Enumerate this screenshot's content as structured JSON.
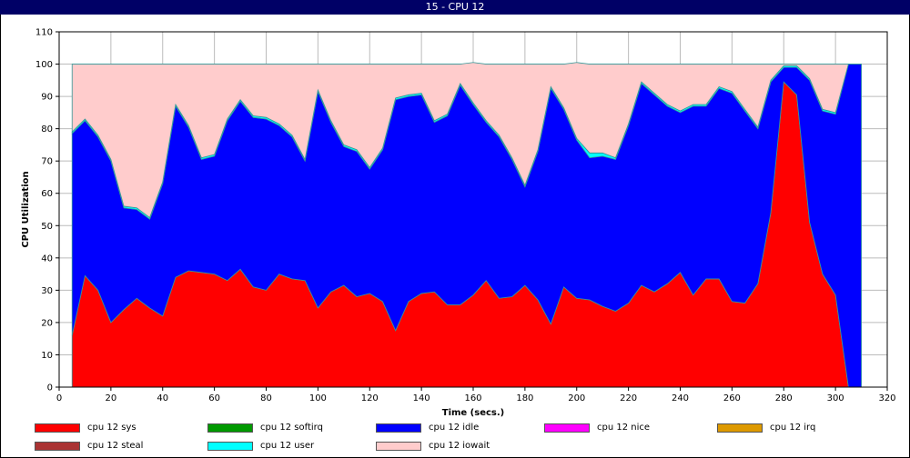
{
  "window": {
    "title": "15 - CPU 12"
  },
  "chart_data": {
    "type": "area",
    "stacked": true,
    "title": "15 - CPU 12",
    "xlabel": "Time (secs.)",
    "ylabel": "CPU Utilization",
    "xlim": [
      0,
      320
    ],
    "ylim": [
      0,
      110
    ],
    "xticks": [
      0,
      20,
      40,
      60,
      80,
      100,
      120,
      140,
      160,
      180,
      200,
      220,
      240,
      260,
      280,
      300,
      320
    ],
    "yticks": [
      0,
      10,
      20,
      30,
      40,
      50,
      60,
      70,
      80,
      90,
      100,
      110
    ],
    "grid": true,
    "legend_position": "bottom",
    "x": [
      5,
      10,
      15,
      20,
      25,
      30,
      35,
      40,
      45,
      50,
      55,
      60,
      65,
      70,
      75,
      80,
      85,
      90,
      95,
      100,
      105,
      110,
      115,
      120,
      125,
      130,
      135,
      140,
      145,
      150,
      155,
      160,
      165,
      170,
      175,
      180,
      185,
      190,
      195,
      200,
      205,
      210,
      215,
      220,
      225,
      230,
      235,
      240,
      245,
      250,
      255,
      260,
      265,
      270,
      275,
      280,
      285,
      290,
      295,
      300,
      305,
      310
    ],
    "series": [
      {
        "name": "cpu 12 sys",
        "color": "#ff0000",
        "values": [
          16,
          34.5,
          30,
          20,
          24,
          27.5,
          24.5,
          22,
          34,
          36,
          35.5,
          35,
          33,
          36.5,
          31,
          30,
          35,
          33.5,
          33,
          24.5,
          29.5,
          31.5,
          28,
          29,
          26.5,
          17.5,
          26.5,
          29,
          29.5,
          25.5,
          25.5,
          28.5,
          33,
          27.5,
          28,
          31.5,
          27,
          19.5,
          31,
          27.5,
          27,
          25,
          23.5,
          26,
          31.5,
          29.5,
          32,
          35.5,
          28.5,
          33.5,
          33.5,
          26.5,
          26,
          32,
          54,
          94.5,
          90.5,
          51,
          35,
          28.5,
          0,
          0
        ]
      },
      {
        "name": "cpu 12 softirq",
        "color": "#009900",
        "values": [
          0,
          0,
          0,
          0,
          0,
          0,
          0,
          0,
          0,
          0,
          0,
          0,
          0,
          0,
          0,
          0,
          0,
          0,
          0,
          0,
          0,
          0,
          0,
          0,
          0,
          0,
          0,
          0,
          0,
          0,
          0,
          0,
          0,
          0,
          0,
          0,
          0,
          0,
          0,
          0,
          0,
          0,
          0,
          0,
          0,
          0,
          0,
          0,
          0,
          0,
          0,
          0,
          0,
          0,
          0,
          0,
          0,
          0,
          0,
          0,
          0,
          0
        ]
      },
      {
        "name": "cpu 12 idle",
        "color": "#0000ff",
        "values": [
          62.5,
          48,
          47.5,
          50,
          31.5,
          27.5,
          27.5,
          41,
          53,
          44.5,
          35,
          36.5,
          49.5,
          52,
          52.5,
          53,
          46,
          44,
          37,
          67,
          52.5,
          43,
          45,
          38.5,
          47,
          71.5,
          63.5,
          61.5,
          52.5,
          58.5,
          68,
          59,
          49,
          50,
          42.5,
          30.5,
          46,
          73,
          55,
          49,
          44,
          46.5,
          47,
          55,
          62.5,
          61,
          55,
          49.5,
          58.5,
          53.5,
          59,
          64.5,
          59.5,
          48,
          40.5,
          4.5,
          8.5,
          44,
          50.5,
          56,
          100,
          100
        ]
      },
      {
        "name": "cpu 12 nice",
        "color": "#ff00ff",
        "values": [
          0,
          0,
          0,
          0,
          0,
          0,
          0,
          0,
          0,
          0,
          0,
          0,
          0,
          0,
          0,
          0,
          0,
          0,
          0,
          0,
          0,
          0,
          0,
          0,
          0,
          0,
          0,
          0,
          0,
          0,
          0,
          0,
          0,
          0,
          0,
          0,
          0,
          0,
          0,
          0,
          0,
          0,
          0,
          0,
          0,
          0,
          0,
          0,
          0,
          0,
          0,
          0,
          0,
          0,
          0,
          0,
          0,
          0,
          0,
          0,
          0,
          0
        ]
      },
      {
        "name": "cpu 12 irq",
        "color": "#dd9900",
        "values": [
          0,
          0,
          0,
          0,
          0,
          0,
          0,
          0,
          0,
          0,
          0,
          0,
          0,
          0,
          0,
          0,
          0,
          0,
          0,
          0,
          0,
          0,
          0,
          0,
          0,
          0,
          0,
          0,
          0,
          0,
          0,
          0,
          0,
          0,
          0,
          0,
          0,
          0,
          0,
          0,
          0,
          0,
          0,
          0,
          0,
          0,
          0,
          0,
          0,
          0,
          0,
          0,
          0,
          0,
          0,
          0,
          0,
          0,
          0,
          0,
          0,
          0
        ]
      },
      {
        "name": "cpu 12 steal",
        "color": "#aa3333",
        "values": [
          0,
          0,
          0,
          0,
          0,
          0,
          0,
          0,
          0,
          0,
          0,
          0,
          0,
          0,
          0,
          0,
          0,
          0,
          0,
          0,
          0,
          0,
          0,
          0,
          0,
          0,
          0,
          0,
          0,
          0,
          0,
          0,
          0,
          0,
          0,
          0,
          0,
          0,
          0,
          0,
          0,
          0,
          0,
          0,
          0,
          0,
          0,
          0,
          0,
          0,
          0,
          0,
          0,
          0,
          0,
          0,
          0,
          0,
          0,
          0,
          0,
          0
        ]
      },
      {
        "name": "cpu 12 user",
        "color": "#00ffff",
        "values": [
          0.5,
          0.5,
          0.5,
          0.5,
          0.5,
          0.5,
          0.5,
          0.5,
          0.5,
          0.5,
          0.5,
          0.5,
          0.5,
          0.5,
          0.5,
          0.5,
          0.5,
          0.5,
          0.5,
          0.5,
          0.5,
          0.5,
          0.5,
          0.5,
          0.5,
          0.5,
          0.5,
          0.5,
          0.5,
          0.5,
          0.5,
          0.5,
          0.5,
          0.5,
          0.5,
          0.5,
          0.5,
          0.5,
          0.5,
          0.5,
          1.5,
          1,
          0.5,
          0.5,
          0.5,
          0.5,
          0.5,
          0.5,
          0.5,
          0.5,
          0.5,
          0.5,
          0.5,
          0.5,
          0.5,
          0.5,
          0.5,
          0.5,
          0.5,
          0.5,
          0,
          0
        ]
      },
      {
        "name": "cpu 12 iowait",
        "color": "#ffcccc",
        "values": [
          21,
          17,
          22,
          29.5,
          44,
          44.5,
          47.5,
          36.5,
          12.5,
          19,
          29,
          28,
          17,
          11,
          16,
          16.5,
          18.5,
          22,
          29.5,
          8,
          17.5,
          25,
          26.5,
          32,
          26,
          10.5,
          9.5,
          9,
          17.5,
          15.5,
          6,
          12.5,
          17.5,
          22,
          29,
          37.5,
          26.5,
          7,
          13.5,
          23.5,
          27.5,
          27.5,
          29,
          18.5,
          5.5,
          9,
          12.5,
          14.5,
          12.5,
          12.5,
          7,
          8.5,
          14,
          19.5,
          5,
          0.5,
          0.5,
          4.5,
          14,
          15,
          0,
          0
        ]
      }
    ],
    "legend_order": [
      "cpu 12 sys",
      "cpu 12 softirq",
      "cpu 12 idle",
      "cpu 12 nice",
      "cpu 12 irq",
      "cpu 12 steal",
      "cpu 12 user",
      "cpu 12 iowait"
    ]
  }
}
